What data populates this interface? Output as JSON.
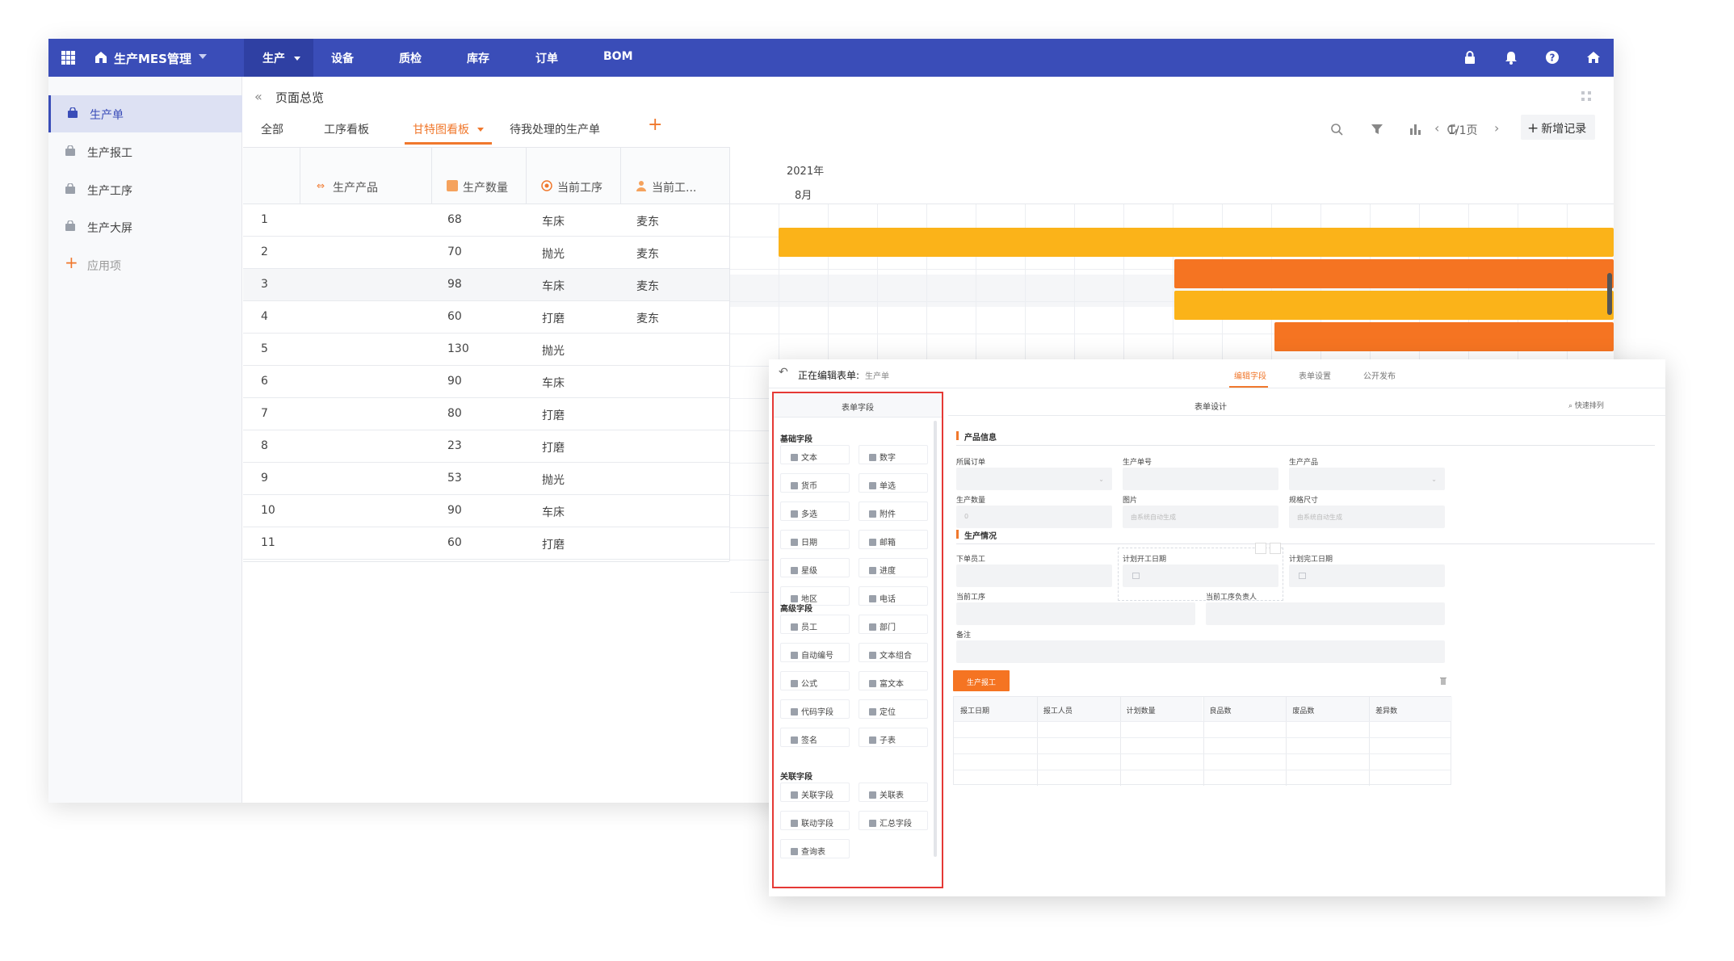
{
  "topbar": {
    "app_title": "生产MES管理",
    "nav": [
      "生产",
      "设备",
      "质检",
      "库存",
      "订单",
      "BOM"
    ],
    "right_icons": [
      "lock-icon",
      "bell-icon",
      "help-icon",
      "home-icon"
    ],
    "brand_color": "#3a4db8"
  },
  "sidebar": {
    "items": [
      {
        "label": "生产单",
        "icon": "bag-icon",
        "active": true
      },
      {
        "label": "生产报工",
        "icon": "bag-icon"
      },
      {
        "label": "生产工序",
        "icon": "bag-icon"
      },
      {
        "label": "生产大屏",
        "icon": "bag-icon"
      },
      {
        "label": "应用项",
        "icon": "plus-icon"
      }
    ]
  },
  "page": {
    "title": "页面总览",
    "tabs": [
      "全部",
      "工序看板",
      "甘特图看板",
      "待我处理的生产单"
    ],
    "active_tab": "甘特图看板",
    "pager": "1/1页",
    "add_record": "新增记录"
  },
  "table": {
    "columns": [
      "生产产品",
      "生产数量",
      "当前工序",
      "当前工..."
    ],
    "rows": [
      {
        "no": "1",
        "qty": "68",
        "step": "车床",
        "owner": "麦东"
      },
      {
        "no": "2",
        "qty": "70",
        "step": "抛光",
        "owner": "麦东"
      },
      {
        "no": "3",
        "qty": "98",
        "step": "车床",
        "owner": "麦东"
      },
      {
        "no": "4",
        "qty": "60",
        "step": "打磨",
        "owner": "麦东"
      },
      {
        "no": "5",
        "qty": "130",
        "step": "抛光",
        "owner": ""
      },
      {
        "no": "6",
        "qty": "90",
        "step": "车床",
        "owner": ""
      },
      {
        "no": "7",
        "qty": "80",
        "step": "打磨",
        "owner": ""
      },
      {
        "no": "8",
        "qty": "23",
        "step": "打磨",
        "owner": ""
      },
      {
        "no": "9",
        "qty": "53",
        "step": "抛光",
        "owner": ""
      },
      {
        "no": "10",
        "qty": "90",
        "step": "车床",
        "owner": ""
      },
      {
        "no": "11",
        "qty": "60",
        "step": "打磨",
        "owner": ""
      }
    ]
  },
  "gantt": {
    "year": "2021年",
    "month": "8月",
    "colors": {
      "yellow": "#fbb319",
      "orange": "#f57422"
    }
  },
  "form_editor": {
    "title": "正在编辑表单:",
    "subtitle": "生产单",
    "tabs": [
      "编辑字段",
      "表单设置",
      "公开发布"
    ],
    "field_panel": {
      "header": "表单字段",
      "sections": [
        {
          "title": "基础字段",
          "fields": [
            "文本",
            "数字",
            "货币",
            "单选",
            "多选",
            "附件",
            "日期",
            "邮箱",
            "星级",
            "进度",
            "地区",
            "电话"
          ]
        },
        {
          "title": "高级字段",
          "fields": [
            "员工",
            "部门",
            "自动编号",
            "文本组合",
            "公式",
            "富文本",
            "代码字段",
            "定位",
            "签名",
            "子表"
          ]
        },
        {
          "title": "关联字段",
          "fields": [
            "关联字段",
            "关联表",
            "联动字段",
            "汇总字段",
            "查询表"
          ]
        }
      ]
    },
    "design": {
      "header": "表单设计",
      "quick_sort": "快速排列",
      "sec1": "产品信息",
      "sec2": "生产情况",
      "labels": [
        "所属订单",
        "生产单号",
        "生产产品",
        "生产数量",
        "图片",
        "规格尺寸",
        "下单员工",
        "计划开工日期",
        "计划完工日期",
        "当前工序",
        "当前工序负责人",
        "备注"
      ],
      "placeholders": {
        "qty": "0",
        "img": "由系统自动生成",
        "spec": "由系统自动生成"
      },
      "subtable_tab": "生产报工",
      "subtable_cols": [
        "报工日期",
        "报工人员",
        "计划数量",
        "良品数",
        "废品数",
        "差异数"
      ]
    }
  }
}
